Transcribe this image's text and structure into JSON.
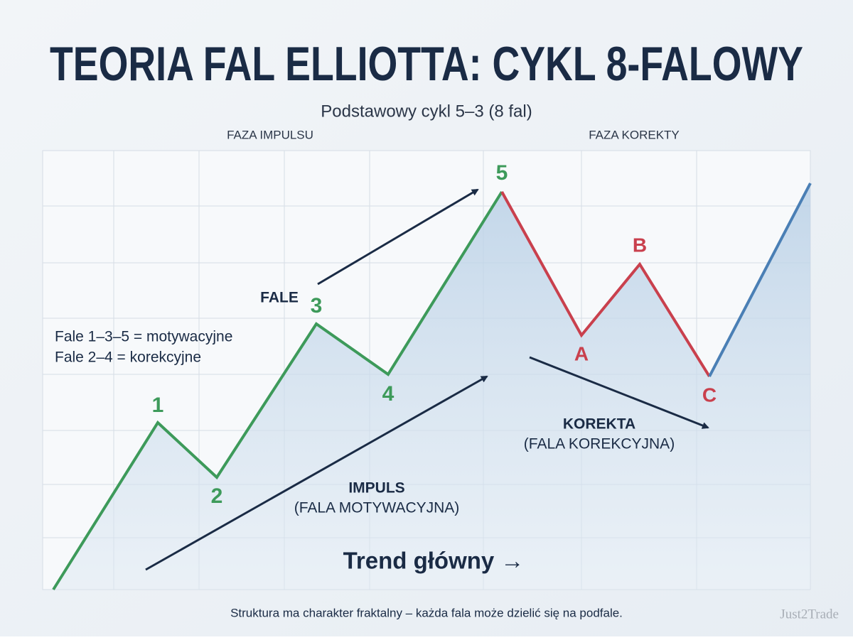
{
  "header": {
    "title": "TEORIA FAL ELLIOTTA: CYKL 8-FALOWY",
    "subtitle": "Podstawowy cykl 5–3 (8 fal)"
  },
  "phases": {
    "impulse": "FAZA IMPULSU",
    "correction": "FAZA KOREKTY"
  },
  "waves": {
    "impulse": [
      "1",
      "2",
      "3",
      "4",
      "5"
    ],
    "correction": [
      "A",
      "B",
      "C"
    ]
  },
  "notes": {
    "waves_label": "FALE",
    "motive": "Fale 1–3–5 = motywacyjne",
    "corrective": "Fale 2–4 = korekcyjne"
  },
  "impulse_label": {
    "title": "IMPULS",
    "subtitle": "(FALA MOTYWACYJNA)"
  },
  "correction_label": {
    "title": "KOREKTA",
    "subtitle": "(FALA KOREKCYJNA)"
  },
  "trend": "Trend główny →",
  "footer": "Struktura ma charakter fraktalny – każda fala może dzielić się na podfale.",
  "watermark": "Just2Trade"
}
